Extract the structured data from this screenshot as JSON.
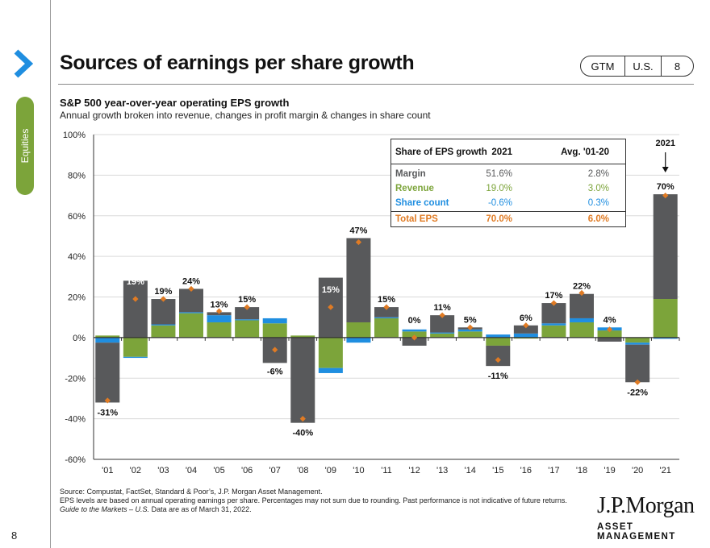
{
  "page": {
    "title": "Sources of earnings per share growth",
    "section_label": "Equities",
    "page_number": "8",
    "badge": [
      "GTM",
      "U.S.",
      "8"
    ]
  },
  "chart_data": {
    "type": "bar",
    "stacked": true,
    "title": "S&P 500 year-over-year operating EPS growth",
    "subtitle": "Annual growth broken into revenue, changes in profit margin & changes in share count",
    "categories": [
      "'01",
      "'02",
      "'03",
      "'04",
      "'05",
      "'06",
      "'07",
      "'08",
      "'09",
      "'10",
      "'11",
      "'12",
      "'13",
      "'14",
      "'15",
      "'16",
      "'17",
      "'18",
      "'19",
      "'20",
      "'21"
    ],
    "yticks": [
      "100%",
      "80%",
      "60%",
      "40%",
      "20%",
      "0%",
      "-20%",
      "-40%",
      "-60%"
    ],
    "ylim": [
      -60,
      100
    ],
    "series": [
      {
        "name": "Revenue",
        "color": "#7ca43a",
        "values": [
          1,
          -9.5,
          6,
          12,
          7.5,
          8.5,
          7,
          1,
          -15,
          7.5,
          9.5,
          3,
          2,
          3,
          -4,
          -0.5,
          6,
          7.5,
          3.5,
          -2.5,
          19
        ]
      },
      {
        "name": "Share count",
        "color": "#1f8ee0",
        "values": [
          -2.5,
          -0.5,
          0.5,
          0.5,
          3.5,
          0.5,
          2.5,
          0,
          -2.5,
          -2.5,
          0.5,
          1,
          0.5,
          1,
          1.5,
          2,
          1,
          2,
          1.5,
          -1,
          -0.6
        ]
      },
      {
        "name": "Margin",
        "color": "#58595b",
        "values": [
          -29.5,
          28,
          12.5,
          11.5,
          1.5,
          6,
          -12.5,
          -42,
          29.5,
          41.5,
          5,
          -4,
          8.5,
          1,
          -10,
          4,
          10,
          12,
          -2,
          -18.5,
          51.6
        ]
      }
    ],
    "total_eps": {
      "name": "Total EPS",
      "color": "#e07b24",
      "values": [
        -31,
        19,
        19,
        24,
        13,
        15,
        -6,
        -40,
        15,
        47,
        15,
        0,
        11,
        5,
        -11,
        6,
        17,
        22,
        4,
        -22,
        70
      ],
      "labels": [
        "-31%",
        "19%",
        "19%",
        "24%",
        "13%",
        "15%",
        "-6%",
        "-40%",
        "15%",
        "47%",
        "15%",
        "0%",
        "11%",
        "5%",
        "-11%",
        "6%",
        "17%",
        "22%",
        "4%",
        "-22%",
        "70%"
      ]
    },
    "annotation": "2021",
    "table": {
      "headers": [
        "Share of EPS growth",
        "2021",
        "Avg. '01-20"
      ],
      "rows": [
        {
          "label": "Margin",
          "v2021": "51.6%",
          "avg": "2.8%",
          "color": "#58595b"
        },
        {
          "label": "Revenue",
          "v2021": "19.0%",
          "avg": "3.0%",
          "color": "#7ca43a"
        },
        {
          "label": "Share count",
          "v2021": "-0.6%",
          "avg": "0.3%",
          "color": "#1f8ee0"
        },
        {
          "label": "Total EPS",
          "v2021": "70.0%",
          "avg": "6.0%",
          "color": "#e07b24"
        }
      ]
    }
  },
  "footer": {
    "source": "Source: Compustat, FactSet, Standard & Poor’s, J.P. Morgan Asset Management.",
    "note": "EPS levels are based on annual operating earnings per share. Percentages may not sum due to rounding. Past performance is not indicative of future returns.",
    "guide": "Guide to the Markets – U.S.",
    "asof": " Data are as of March 31, 2022.",
    "logo_line1": "J.P.Morgan",
    "logo_line2": "ASSET MANAGEMENT"
  }
}
